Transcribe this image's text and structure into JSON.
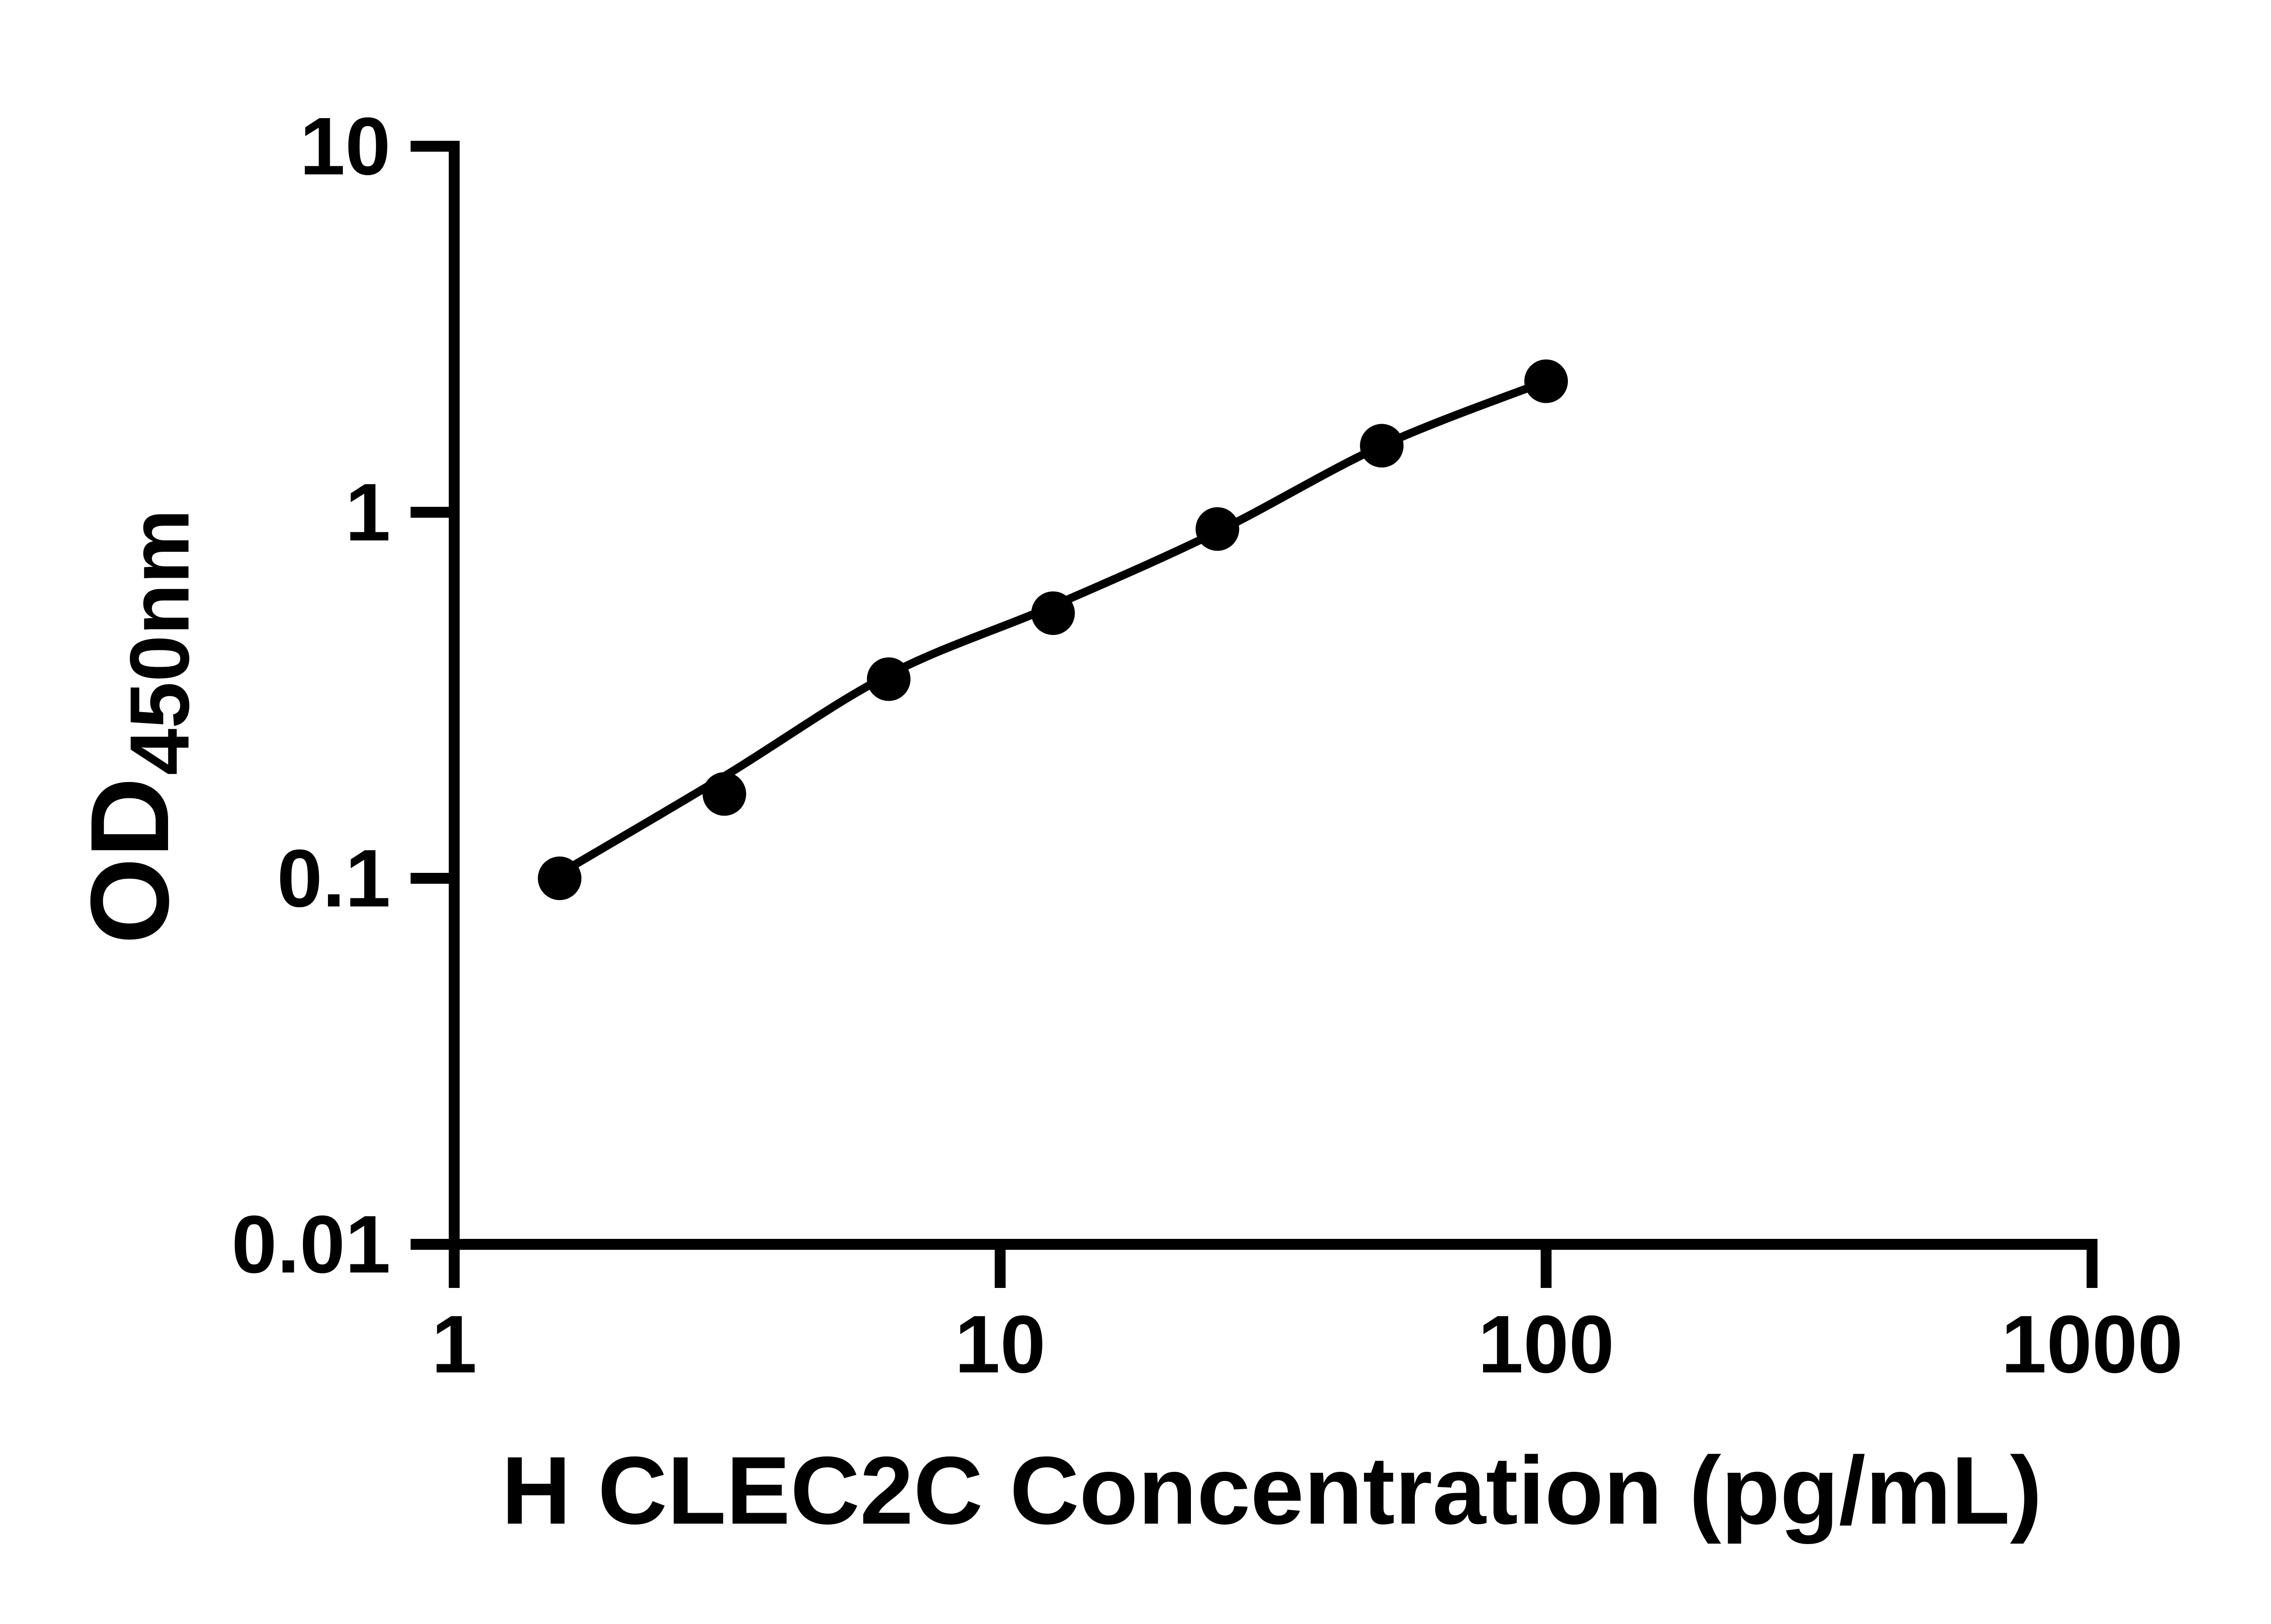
{
  "figure": {
    "background": "#ffffff",
    "ink_color": "#000000"
  },
  "chart_data": {
    "type": "scatter",
    "title": "",
    "xlabel": "H CLEC2C Concentration (pg/mL)",
    "ylabel_main": "OD",
    "ylabel_sub": "450nm",
    "x_scale": "log",
    "y_scale": "log",
    "xlim": [
      1,
      1000
    ],
    "ylim": [
      0.01,
      10
    ],
    "grid": false,
    "legend": "none",
    "x_ticks": [
      {
        "value": 1,
        "label": "1"
      },
      {
        "value": 10,
        "label": "10"
      },
      {
        "value": 100,
        "label": "100"
      },
      {
        "value": 1000,
        "label": "1000"
      }
    ],
    "y_ticks": [
      {
        "value": 0.01,
        "label": "0.01"
      },
      {
        "value": 0.1,
        "label": "0.1"
      },
      {
        "value": 1,
        "label": "1"
      },
      {
        "value": 10,
        "label": "10"
      }
    ],
    "series": [
      {
        "name": "standard-curve-points",
        "marker": "filled-circle",
        "color": "#000000",
        "points": [
          {
            "x": 1.56,
            "od": 0.1
          },
          {
            "x": 3.125,
            "od": 0.17
          },
          {
            "x": 6.25,
            "od": 0.35
          },
          {
            "x": 12.5,
            "od": 0.53
          },
          {
            "x": 25,
            "od": 0.9
          },
          {
            "x": 50,
            "od": 1.52
          },
          {
            "x": 100,
            "od": 2.28
          }
        ]
      }
    ],
    "fit_curve": {
      "name": "four-parameter-logistic-fit",
      "color": "#000000",
      "points": [
        {
          "x": 1.56,
          "od": 0.103
        },
        {
          "x": 3.125,
          "od": 0.19
        },
        {
          "x": 6.25,
          "od": 0.36
        },
        {
          "x": 12.5,
          "od": 0.555
        },
        {
          "x": 25,
          "od": 0.885
        },
        {
          "x": 50,
          "od": 1.52
        },
        {
          "x": 100,
          "od": 2.28
        }
      ]
    }
  }
}
